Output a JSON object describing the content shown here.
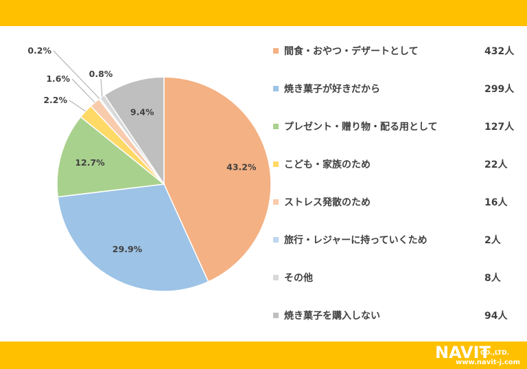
{
  "chart_data": {
    "type": "pie",
    "slices": [
      {
        "label": "間食・おやつ・デザートとして",
        "count": "432人",
        "percent_label": "43.2%",
        "value": 43.2,
        "color": "#f4b183"
      },
      {
        "label": "焼き菓子が好きだから",
        "count": "299人",
        "percent_label": "29.9%",
        "value": 29.9,
        "color": "#9dc3e6"
      },
      {
        "label": "プレゼント・贈り物・配る用として",
        "count": "127人",
        "percent_label": "12.7%",
        "value": 12.7,
        "color": "#a9d18e"
      },
      {
        "label": "こども・家族のため",
        "count": "22人",
        "percent_label": "2.2%",
        "value": 2.2,
        "color": "#ffd966"
      },
      {
        "label": "ストレス発散のため",
        "count": "16人",
        "percent_label": "1.6%",
        "value": 1.6,
        "color": "#f8cbad"
      },
      {
        "label": "旅行・レジャーに持っていくため",
        "count": "2人",
        "percent_label": "0.2%",
        "value": 0.2,
        "color": "#bdd7ee"
      },
      {
        "label": "その他",
        "count": "8人",
        "percent_label": "0.8%",
        "value": 0.8,
        "color": "#d9d9d9"
      },
      {
        "label": "焼き菓子を購入しない",
        "count": "94人",
        "percent_label": "9.4%",
        "value": 9.4,
        "color": "#bfbfbf"
      }
    ],
    "legend_position": "right"
  },
  "branding": {
    "logo_word": "NAVIT",
    "logo_suffix": "CO.,LTD.",
    "url": "www.navit-j.com",
    "band_color": "#ffc000"
  }
}
